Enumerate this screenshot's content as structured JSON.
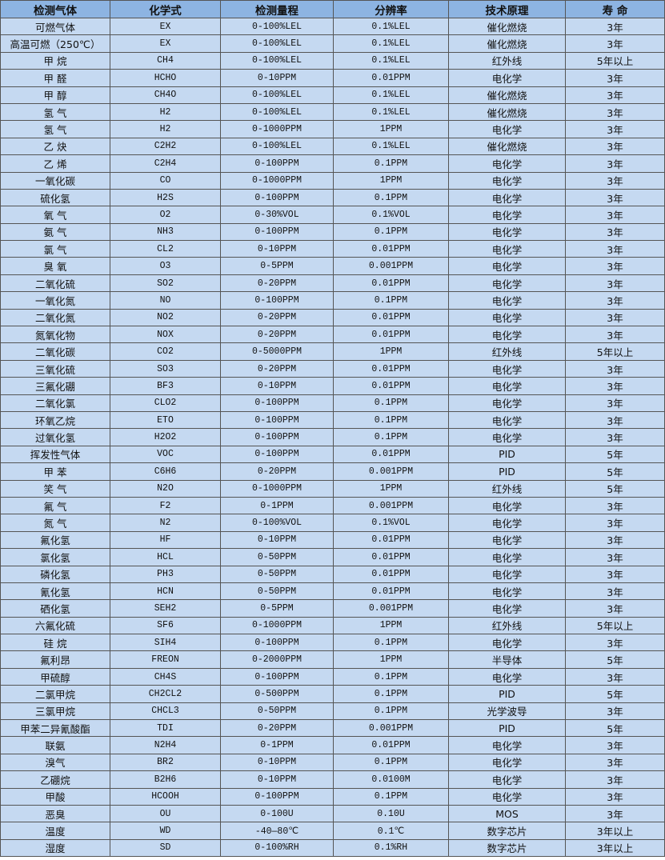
{
  "colors": {
    "header_bg": "#8db4e2",
    "cell_bg": "#c5d9f1",
    "border": "#555555"
  },
  "headers": [
    "检测气体",
    "化学式",
    "检测量程",
    "分辨率",
    "技术原理",
    "寿 命"
  ],
  "rows": [
    [
      "可燃气体",
      "EX",
      "0-100%LEL",
      "0.1%LEL",
      "催化燃烧",
      "3年"
    ],
    [
      "高温可燃（250℃）",
      "EX",
      "0-100%LEL",
      "0.1%LEL",
      "催化燃烧",
      "3年"
    ],
    [
      "甲 烷",
      "CH4",
      "0-100%LEL",
      "0.1%LEL",
      "红外线",
      "5年以上"
    ],
    [
      "甲 醛",
      "HCHO",
      "0-10PPM",
      "0.01PPM",
      "电化学",
      "3年"
    ],
    [
      "甲 醇",
      "CH4O",
      "0-100%LEL",
      "0.1%LEL",
      "催化燃烧",
      "3年"
    ],
    [
      "氢 气",
      "H2",
      "0-100%LEL",
      "0.1%LEL",
      "催化燃烧",
      "3年"
    ],
    [
      "氢 气",
      "H2",
      "0-1000PPM",
      "1PPM",
      "电化学",
      "3年"
    ],
    [
      "乙 炔",
      "C2H2",
      "0-100%LEL",
      "0.1%LEL",
      "催化燃烧",
      "3年"
    ],
    [
      "乙 烯",
      "C2H4",
      "0-100PPM",
      "0.1PPM",
      "电化学",
      "3年"
    ],
    [
      "一氧化碳",
      "CO",
      "0-1000PPM",
      "1PPM",
      "电化学",
      "3年"
    ],
    [
      "硫化氢",
      "H2S",
      "0-100PPM",
      "0.1PPM",
      "电化学",
      "3年"
    ],
    [
      "氧 气",
      "O2",
      "0-30%VOL",
      "0.1%VOL",
      "电化学",
      "3年"
    ],
    [
      "氨 气",
      "NH3",
      "0-100PPM",
      "0.1PPM",
      "电化学",
      "3年"
    ],
    [
      "氯 气",
      "CL2",
      "0-10PPM",
      "0.01PPM",
      "电化学",
      "3年"
    ],
    [
      "臭 氧",
      "O3",
      "0-5PPM",
      "0.001PPM",
      "电化学",
      "3年"
    ],
    [
      "二氧化硫",
      "SO2",
      "0-20PPM",
      "0.01PPM",
      "电化学",
      "3年"
    ],
    [
      "一氧化氮",
      "NO",
      "0-100PPM",
      "0.1PPM",
      "电化学",
      "3年"
    ],
    [
      "二氧化氮",
      "NO2",
      "0-20PPM",
      "0.01PPM",
      "电化学",
      "3年"
    ],
    [
      "氮氧化物",
      "NOX",
      "0-20PPM",
      "0.01PPM",
      "电化学",
      "3年"
    ],
    [
      "二氧化碳",
      "CO2",
      "0-5000PPM",
      "1PPM",
      "红外线",
      "5年以上"
    ],
    [
      "三氧化硫",
      "SO3",
      "0-20PPM",
      "0.01PPM",
      "电化学",
      "3年"
    ],
    [
      "三氟化硼",
      "BF3",
      "0-10PPM",
      "0.01PPM",
      "电化学",
      "3年"
    ],
    [
      "二氧化氯",
      "CLO2",
      "0-100PPM",
      "0.1PPM",
      "电化学",
      "3年"
    ],
    [
      "环氧乙烷",
      "ETO",
      "0-100PPM",
      "0.1PPM",
      "电化学",
      "3年"
    ],
    [
      "过氧化氢",
      "H2O2",
      "0-100PPM",
      "0.1PPM",
      "电化学",
      "3年"
    ],
    [
      "挥发性气体",
      "VOC",
      "0-100PPM",
      "0.01PPM",
      "PID",
      "5年"
    ],
    [
      "甲 苯",
      "C6H6",
      "0-20PPM",
      "0.001PPM",
      "PID",
      "5年"
    ],
    [
      "笑 气",
      "N2O",
      "0-1000PPM",
      "1PPM",
      "红外线",
      "5年"
    ],
    [
      "氟 气",
      "F2",
      "0-1PPM",
      "0.001PPM",
      "电化学",
      "3年"
    ],
    [
      "氮 气",
      "N2",
      "0-100%VOL",
      "0.1%VOL",
      "电化学",
      "3年"
    ],
    [
      "氟化氢",
      "HF",
      "0-10PPM",
      "0.01PPM",
      "电化学",
      "3年"
    ],
    [
      "氯化氢",
      "HCL",
      "0-50PPM",
      "0.01PPM",
      "电化学",
      "3年"
    ],
    [
      "磷化氢",
      "PH3",
      "0-50PPM",
      "0.01PPM",
      "电化学",
      "3年"
    ],
    [
      "氰化氢",
      "HCN",
      "0-50PPM",
      "0.01PPM",
      "电化学",
      "3年"
    ],
    [
      "硒化氢",
      "SEH2",
      "0-5PPM",
      "0.001PPM",
      "电化学",
      "3年"
    ],
    [
      "六氟化硫",
      "SF6",
      "0-1000PPM",
      "1PPM",
      "红外线",
      "5年以上"
    ],
    [
      "硅 烷",
      "SIH4",
      "0-100PPM",
      "0.1PPM",
      "电化学",
      "3年"
    ],
    [
      "氟利昂",
      "FREON",
      "0-2000PPM",
      "1PPM",
      "半导体",
      "5年"
    ],
    [
      "甲硫醇",
      "CH4S",
      "0-100PPM",
      "0.1PPM",
      "电化学",
      "3年"
    ],
    [
      "二氯甲烷",
      "CH2CL2",
      "0-500PPM",
      "0.1PPM",
      "PID",
      "5年"
    ],
    [
      "三氯甲烷",
      "CHCL3",
      "0-50PPM",
      "0.1PPM",
      "光学波导",
      "3年"
    ],
    [
      "甲苯二异氰酸酯",
      "TDI",
      "0-20PPM",
      "0.001PPM",
      "PID",
      "5年"
    ],
    [
      "联氨",
      "N2H4",
      "0-1PPM",
      "0.01PPM",
      "电化学",
      "3年"
    ],
    [
      "溴气",
      "BR2",
      "0-10PPM",
      "0.1PPM",
      "电化学",
      "3年"
    ],
    [
      "乙硼烷",
      "B2H6",
      "0-10PPM",
      "0.0100M",
      "电化学",
      "3年"
    ],
    [
      "甲酸",
      "HCOOH",
      "0-100PPM",
      "0.1PPM",
      "电化学",
      "3年"
    ],
    [
      "恶臭",
      "OU",
      "0-100U",
      "0.10U",
      "MOS",
      "3年"
    ],
    [
      "温度",
      "WD",
      "-40—80℃",
      "0.1℃",
      "数字芯片",
      "3年以上"
    ],
    [
      "湿度",
      "SD",
      "0-100%RH",
      "0.1%RH",
      "数字芯片",
      "3年以上"
    ]
  ]
}
